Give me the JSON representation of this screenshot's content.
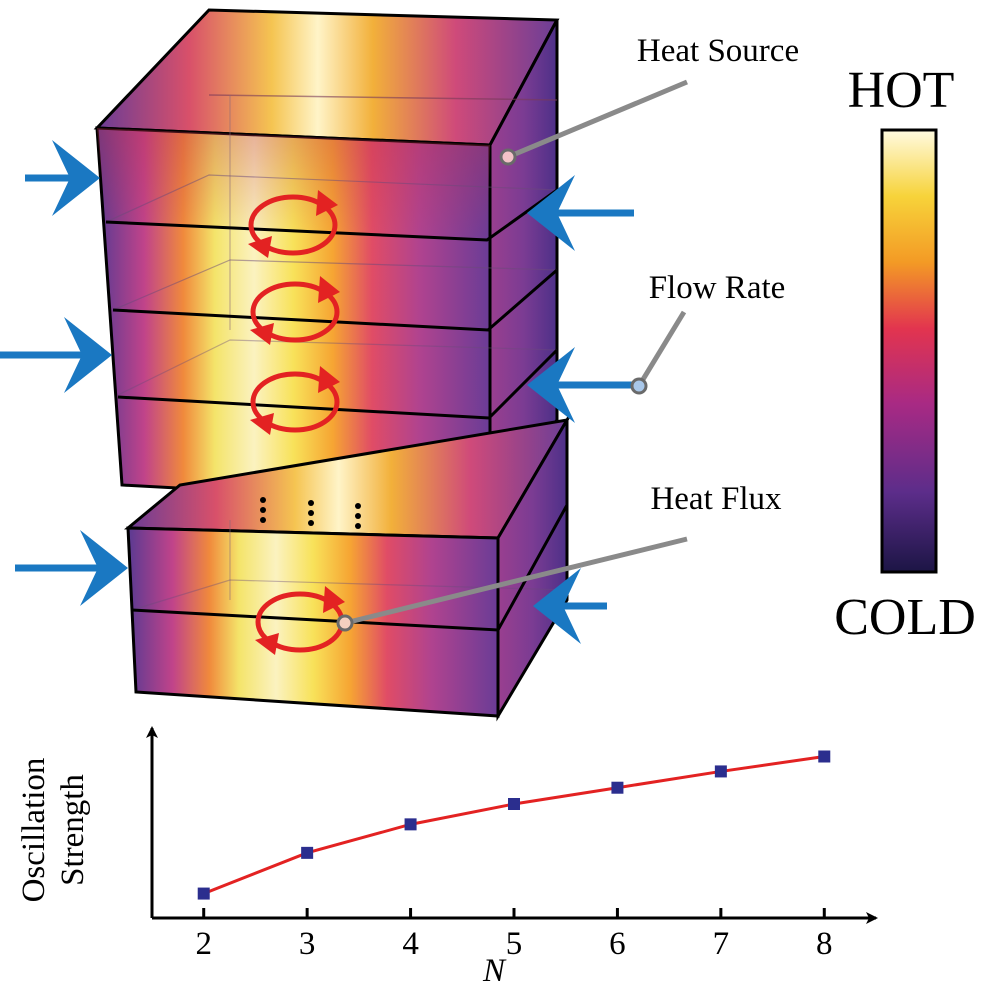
{
  "labels": {
    "heat_source": "Heat Source",
    "flow_rate": "Flow Rate",
    "heat_flux": "Heat Flux"
  },
  "colorbar": {
    "top_label": "HOT",
    "bottom_label": "COLD",
    "stops": [
      "#fffbe0",
      "#f7d33a",
      "#f39a25",
      "#e2344f",
      "#a82a84",
      "#5c2d8a",
      "#1c1545"
    ]
  },
  "colors": {
    "flow_arrow": "#1a78c2",
    "convection_roll": "#e32222",
    "leader_line": "#8a8a8a",
    "plot_line": "#e32222",
    "plot_marker": "#2b2e8e"
  },
  "chart_data": {
    "type": "line",
    "xlabel": "N",
    "ylabel": "Oscillation Strength",
    "x": [
      2,
      3,
      4,
      5,
      6,
      7,
      8
    ],
    "series": [
      {
        "values": [
          0.18,
          0.48,
          0.69,
          0.84,
          0.96,
          1.08,
          1.19
        ]
      }
    ],
    "xlim": [
      1.5,
      8.5
    ],
    "ylim": [
      0,
      1.4
    ],
    "ticks_x": [
      "2",
      "3",
      "4",
      "5",
      "6",
      "7",
      "8"
    ],
    "y_ticks_shown": false,
    "grid": false
  }
}
